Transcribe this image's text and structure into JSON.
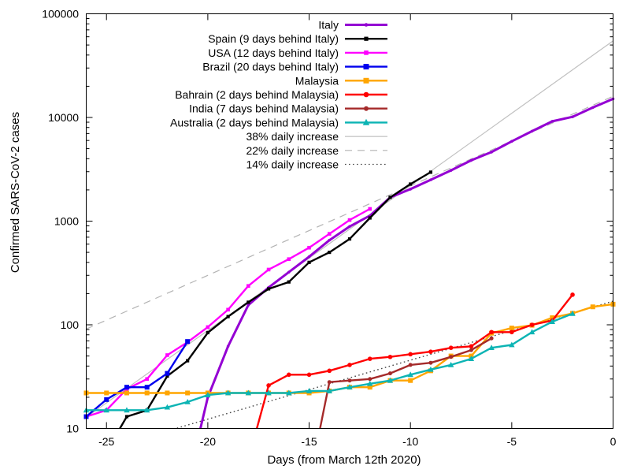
{
  "chart_data": {
    "type": "line",
    "title": "",
    "xlabel": "Days (from March 12th 2020)",
    "ylabel": "Confirmed SARS-CoV-2 cases",
    "x_range": [
      -26,
      0
    ],
    "y_log_range": [
      10,
      100000
    ],
    "x_ticks": [
      -25,
      -20,
      -15,
      -10,
      -5,
      0
    ],
    "x_tick_labels": [
      "-25",
      "-20",
      "-15",
      "-10",
      "-5",
      "0"
    ],
    "y_ticks": [
      10,
      100,
      1000,
      10000,
      100000
    ],
    "y_tick_labels": [
      "10",
      "100",
      "1000",
      "10000",
      "100000"
    ],
    "y_scale": "log",
    "grid": false,
    "legend_position": "top-right-inside",
    "series": [
      {
        "name": "Italy",
        "color": "#9400d3",
        "marker": "dot",
        "marker_size": 3.6,
        "line_width": 3,
        "x": [
          -21,
          -20,
          -19,
          -18,
          -17,
          -16,
          -15,
          -14,
          -13,
          -12,
          -11,
          -10,
          -9,
          -8,
          -7,
          -6,
          -5,
          -4,
          -3,
          -2,
          -1,
          0
        ],
        "values": [
          3,
          20,
          62,
          155,
          229,
          322,
          453,
          655,
          888,
          1128,
          1694,
          2036,
          2502,
          3089,
          3858,
          4636,
          5883,
          7375,
          9172,
          10149,
          12462,
          15113
        ]
      },
      {
        "name": "Spain (9 days behind Italy)",
        "color": "#000000",
        "marker": "square",
        "marker_size": 4.2,
        "line_width": 2.4,
        "x": [
          -25,
          -24,
          -23,
          -22,
          -21,
          -20,
          -19,
          -18,
          -17,
          -16,
          -15,
          -14,
          -13,
          -12,
          -11,
          -10,
          -9
        ],
        "values": [
          6,
          13,
          15,
          32,
          45,
          84,
          120,
          165,
          222,
          259,
          400,
          500,
          673,
          1073,
          1695,
          2277,
          2965
        ]
      },
      {
        "name": "USA (12 days behind Italy)",
        "color": "#ff00ff",
        "marker": "square",
        "marker_size": 4.6,
        "line_width": 2.4,
        "x": [
          -26,
          -25,
          -24,
          -23,
          -22,
          -21,
          -20,
          -19,
          -18,
          -17,
          -16,
          -15,
          -14,
          -13,
          -12
        ],
        "values": [
          13,
          15,
          24,
          30,
          51,
          68,
          95,
          140,
          237,
          341,
          430,
          554,
          754,
          1025,
          1312
        ]
      },
      {
        "name": "Brazil (20 days behind Italy)",
        "color": "#0000ee",
        "marker": "square",
        "marker_size": 6,
        "line_width": 2.4,
        "x": [
          -26,
          -25,
          -24,
          -23,
          -22,
          -21
        ],
        "values": [
          13,
          19,
          25,
          25,
          34,
          69
        ]
      },
      {
        "name": "Malaysia",
        "color": "#ffa500",
        "marker": "square",
        "marker_size": 6,
        "line_width": 2.4,
        "x": [
          -26,
          -25,
          -24,
          -23,
          -22,
          -21,
          -20,
          -19,
          -18,
          -17,
          -16,
          -15,
          -14,
          -13,
          -12,
          -11,
          -10,
          -9,
          -8,
          -7,
          -6,
          -5,
          -4,
          -3,
          -2,
          -1,
          0
        ],
        "values": [
          22,
          22,
          22,
          22,
          22,
          22,
          22,
          22,
          22,
          22,
          22,
          22,
          23,
          25,
          25,
          29,
          29,
          36,
          50,
          50,
          83,
          93,
          99,
          117,
          129,
          149,
          158
        ]
      },
      {
        "name": "Bahrain (2 days behind Malaysia)",
        "color": "#ff0000",
        "marker": "circle",
        "marker_size": 5.6,
        "line_width": 2.4,
        "x": [
          -18,
          -17,
          -16,
          -15,
          -14,
          -13,
          -12,
          -11,
          -10,
          -9,
          -8,
          -7,
          -6,
          -5,
          -4,
          -3,
          -2
        ],
        "values": [
          5,
          26,
          33,
          33,
          36,
          41,
          47,
          49,
          52,
          55,
          60,
          62,
          85,
          85,
          100,
          110,
          195
        ]
      },
      {
        "name": "India (7 days behind Malaysia)",
        "color": "#a52a2a",
        "marker": "circle",
        "marker_size": 5,
        "line_width": 2.4,
        "x": [
          -15,
          -14,
          -13,
          -12,
          -11,
          -10,
          -9,
          -8,
          -7,
          -6
        ],
        "values": [
          3,
          28,
          29,
          30,
          34,
          41,
          43,
          49,
          57,
          74
        ]
      },
      {
        "name": "Australia (2 days behind Malaysia)",
        "color": "#0cb4b4",
        "marker": "triangle",
        "marker_size": 6.4,
        "line_width": 2.4,
        "x": [
          -26,
          -25,
          -24,
          -23,
          -22,
          -21,
          -20,
          -19,
          -18,
          -17,
          -16,
          -15,
          -14,
          -13,
          -12,
          -11,
          -10,
          -9,
          -8,
          -7,
          -6,
          -5,
          -4,
          -3,
          -2
        ],
        "values": [
          15,
          15,
          15,
          15,
          16,
          18,
          21,
          22,
          22,
          22,
          22,
          23,
          23,
          25,
          27,
          29,
          33,
          37,
          41,
          47,
          60,
          64,
          85,
          107,
          128
        ]
      }
    ],
    "reference_lines": [
      {
        "label": "38% daily increase",
        "daily_increase_pct": 38,
        "style": "solid",
        "color": "#c0c0c0",
        "points": [
          [
            -26,
            12.8
          ],
          [
            0,
            54800
          ]
        ]
      },
      {
        "label": "22% daily increase",
        "daily_increase_pct": 22,
        "style": "dashed",
        "color": "#b3b3b3",
        "points": [
          [
            -26,
            91
          ],
          [
            0,
            16000
          ]
        ]
      },
      {
        "label": "14% daily increase",
        "daily_increase_pct": 14,
        "style": "dotted",
        "color": "#474747",
        "points": [
          [
            -26,
            5.6
          ],
          [
            0,
            169
          ]
        ]
      }
    ]
  }
}
